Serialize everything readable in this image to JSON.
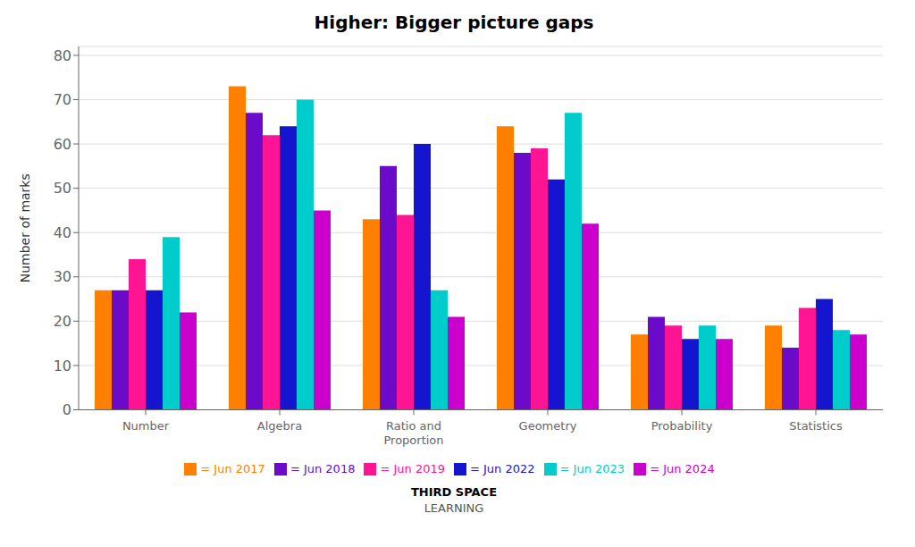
{
  "chart_data": {
    "type": "bar",
    "title": "Higher: Bigger picture gaps",
    "ylabel": "Number of marks",
    "categories": [
      "Number",
      "Algebra",
      "Ratio and\nProportion",
      "Geometry",
      "Probability",
      "Statistics"
    ],
    "series": [
      {
        "name": "= Jun 2017",
        "color": "#FF8000",
        "values": [
          27,
          73,
          43,
          64,
          17,
          19
        ]
      },
      {
        "name": "= Jun 2018",
        "color": "#6B0AC9",
        "values": [
          27,
          67,
          55,
          58,
          21,
          14
        ]
      },
      {
        "name": "= Jun 2019",
        "color": "#FF1493",
        "values": [
          34,
          62,
          44,
          59,
          19,
          23
        ]
      },
      {
        "name": "= Jun 2022",
        "color": "#1515D0",
        "values": [
          27,
          64,
          60,
          52,
          16,
          25
        ]
      },
      {
        "name": "= Jun 2023",
        "color": "#00CCCC",
        "values": [
          39,
          70,
          27,
          67,
          19,
          18
        ]
      },
      {
        "name": "= Jun 2024",
        "color": "#CC00CC",
        "values": [
          22,
          45,
          21,
          42,
          16,
          17
        ]
      }
    ],
    "ylim": [
      0,
      82
    ],
    "yticks": [
      0,
      10,
      20,
      30,
      40,
      50,
      60,
      70,
      80
    ],
    "grid": true,
    "legend": "bottom",
    "annotations": [
      "THIRD SPACE",
      "LEARNING"
    ]
  }
}
